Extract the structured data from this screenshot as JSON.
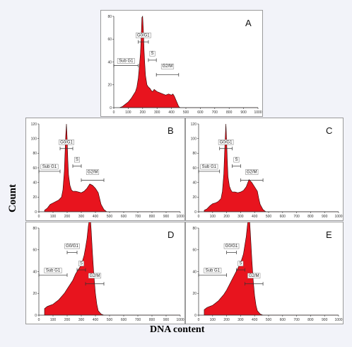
{
  "figure": {
    "ylabel": "Count",
    "xlabel": "DNA content"
  },
  "chart_data": [
    {
      "type": "area",
      "panel": "A",
      "x": [
        40,
        60,
        80,
        100,
        120,
        140,
        150,
        160,
        170,
        180,
        185,
        190,
        195,
        200,
        205,
        210,
        215,
        220,
        230,
        240,
        250,
        260,
        270,
        280,
        290,
        300,
        320,
        340,
        360,
        380,
        400,
        410,
        420,
        430,
        440,
        450,
        460,
        470,
        500,
        1000
      ],
      "values": [
        0,
        1,
        3,
        5,
        8,
        12,
        14,
        18,
        26,
        40,
        48,
        62,
        79,
        80,
        68,
        50,
        38,
        28,
        20,
        18,
        17,
        15,
        14,
        16,
        15,
        14,
        13,
        12,
        11,
        12,
        11,
        12,
        10,
        7,
        4,
        1,
        0,
        0,
        0,
        0
      ],
      "xlim": [
        0,
        1000
      ],
      "ylim": [
        0,
        80
      ],
      "xticks": [
        0,
        100,
        200,
        300,
        400,
        500,
        600,
        700,
        800,
        900,
        1000
      ],
      "yticks": [
        0,
        20,
        40,
        60,
        80
      ],
      "gates": [
        {
          "label": "Sub G1",
          "from": 0,
          "to": 170
        },
        {
          "label": "G0/G1",
          "from": 170,
          "to": 240
        },
        {
          "label": "S",
          "from": 240,
          "to": 295
        },
        {
          "label": "G2/M",
          "from": 295,
          "to": 450
        }
      ],
      "fill": "#e8141e"
    },
    {
      "type": "area",
      "panel": "B",
      "x": [
        40,
        60,
        80,
        100,
        120,
        140,
        160,
        170,
        180,
        185,
        190,
        195,
        200,
        205,
        210,
        220,
        230,
        240,
        260,
        280,
        300,
        320,
        340,
        360,
        380,
        400,
        420,
        430,
        440,
        460,
        480,
        1000
      ],
      "values": [
        2,
        5,
        10,
        12,
        14,
        16,
        20,
        30,
        55,
        80,
        105,
        120,
        100,
        70,
        50,
        36,
        30,
        28,
        28,
        27,
        26,
        28,
        32,
        38,
        36,
        32,
        26,
        18,
        10,
        3,
        0,
        0
      ],
      "xlim": [
        0,
        1000
      ],
      "ylim": [
        0,
        120
      ],
      "xticks": [
        0,
        100,
        200,
        300,
        400,
        500,
        600,
        700,
        800,
        900,
        1000
      ],
      "yticks": [
        0,
        20,
        40,
        60,
        80,
        100,
        120
      ],
      "gates": [
        {
          "label": "Sub G1",
          "from": 0,
          "to": 150
        },
        {
          "label": "G0/G1",
          "from": 150,
          "to": 240
        },
        {
          "label": "S",
          "from": 240,
          "to": 300
        },
        {
          "label": "G2/M",
          "from": 300,
          "to": 460
        }
      ],
      "fill": "#e8141e"
    },
    {
      "type": "area",
      "panel": "C",
      "x": [
        40,
        60,
        80,
        100,
        120,
        140,
        160,
        170,
        180,
        185,
        190,
        195,
        200,
        205,
        210,
        220,
        230,
        240,
        260,
        280,
        300,
        320,
        340,
        360,
        380,
        400,
        420,
        430,
        440,
        460,
        480,
        1000
      ],
      "values": [
        2,
        4,
        8,
        11,
        12,
        14,
        18,
        28,
        52,
        78,
        100,
        120,
        98,
        70,
        48,
        35,
        30,
        27,
        27,
        26,
        27,
        29,
        34,
        44,
        40,
        34,
        28,
        18,
        10,
        3,
        0,
        0
      ],
      "xlim": [
        0,
        1000
      ],
      "ylim": [
        0,
        120
      ],
      "xticks": [
        0,
        100,
        200,
        300,
        400,
        500,
        600,
        700,
        800,
        900,
        1000
      ],
      "yticks": [
        0,
        20,
        40,
        60,
        80,
        100,
        120
      ],
      "gates": [
        {
          "label": "Sub G1",
          "from": 0,
          "to": 150
        },
        {
          "label": "G0/G1",
          "from": 150,
          "to": 240
        },
        {
          "label": "S",
          "from": 240,
          "to": 300
        },
        {
          "label": "G2/M",
          "from": 300,
          "to": 460
        }
      ],
      "fill": "#e8141e"
    },
    {
      "type": "area",
      "panel": "D",
      "x": [
        40,
        60,
        80,
        100,
        120,
        140,
        160,
        180,
        200,
        220,
        240,
        260,
        280,
        300,
        320,
        330,
        340,
        350,
        360,
        365,
        370,
        380,
        390,
        400,
        410,
        420,
        440,
        460,
        1000
      ],
      "values": [
        6,
        8,
        9,
        10,
        12,
        14,
        17,
        20,
        24,
        28,
        32,
        38,
        42,
        46,
        55,
        62,
        70,
        82,
        90,
        88,
        78,
        55,
        35,
        20,
        10,
        4,
        1,
        0,
        0
      ],
      "xlim": [
        0,
        1000
      ],
      "ylim": [
        0,
        80
      ],
      "xticks": [
        0,
        100,
        200,
        300,
        400,
        500,
        600,
        700,
        800,
        900,
        1000
      ],
      "yticks": [
        0,
        20,
        40,
        60,
        80
      ],
      "gates": [
        {
          "label": "Sub G1",
          "from": 0,
          "to": 200
        },
        {
          "label": "G0/G1",
          "from": 200,
          "to": 270
        },
        {
          "label": "S",
          "from": 270,
          "to": 330
        },
        {
          "label": "G2/M",
          "from": 330,
          "to": 460
        }
      ],
      "fill": "#e8141e"
    },
    {
      "type": "area",
      "panel": "E",
      "x": [
        40,
        60,
        80,
        100,
        120,
        140,
        160,
        180,
        200,
        220,
        240,
        260,
        280,
        300,
        320,
        330,
        340,
        350,
        360,
        365,
        370,
        380,
        390,
        400,
        410,
        420,
        440,
        460,
        1000
      ],
      "values": [
        5,
        7,
        8,
        9,
        11,
        13,
        16,
        19,
        23,
        28,
        33,
        38,
        43,
        48,
        56,
        64,
        72,
        84,
        90,
        86,
        75,
        52,
        32,
        18,
        9,
        4,
        1,
        0,
        0
      ],
      "xlim": [
        0,
        1000
      ],
      "ylim": [
        0,
        80
      ],
      "xticks": [
        0,
        100,
        200,
        300,
        400,
        500,
        600,
        700,
        800,
        900,
        1000
      ],
      "yticks": [
        0,
        20,
        40,
        60,
        80
      ],
      "gates": [
        {
          "label": "Sub G1",
          "from": 0,
          "to": 200
        },
        {
          "label": "G0/G1",
          "from": 200,
          "to": 270
        },
        {
          "label": "S",
          "from": 270,
          "to": 330
        },
        {
          "label": "G2/M",
          "from": 330,
          "to": 460
        }
      ],
      "fill": "#e8141e"
    }
  ]
}
